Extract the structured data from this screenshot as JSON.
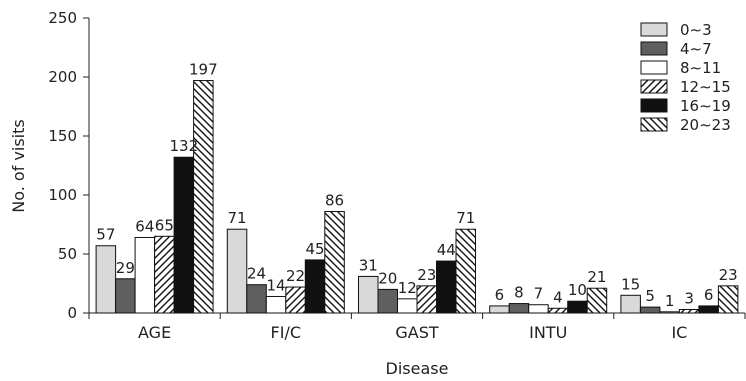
{
  "chart_data": {
    "type": "bar",
    "title": "",
    "xlabel": "Disease",
    "ylabel": "No. of visits",
    "ylim": [
      0,
      250
    ],
    "yticks": [
      0,
      50,
      100,
      150,
      200,
      250
    ],
    "grid": false,
    "legend_position": "top-right",
    "categories": [
      "AGE",
      "FI/C",
      "GAST",
      "INTU",
      "IC"
    ],
    "series": [
      {
        "name": "0∼3",
        "values": [
          57,
          71,
          31,
          6,
          15
        ],
        "fill": "#d9d9d9",
        "pattern": "solid"
      },
      {
        "name": "4∼7",
        "values": [
          29,
          24,
          20,
          8,
          5
        ],
        "fill": "#5f5f5f",
        "pattern": "solid"
      },
      {
        "name": "8∼11",
        "values": [
          64,
          14,
          12,
          7,
          1
        ],
        "fill": "#ffffff",
        "pattern": "solid"
      },
      {
        "name": "12∼15",
        "values": [
          65,
          22,
          23,
          4,
          3
        ],
        "fill": "#ffffff",
        "pattern": "hatch-forward"
      },
      {
        "name": "16∼19",
        "values": [
          132,
          45,
          44,
          10,
          6
        ],
        "fill": "#111111",
        "pattern": "solid"
      },
      {
        "name": "20∼23",
        "values": [
          197,
          86,
          71,
          21,
          23
        ],
        "fill": "#ffffff",
        "pattern": "hatch-back"
      }
    ]
  }
}
